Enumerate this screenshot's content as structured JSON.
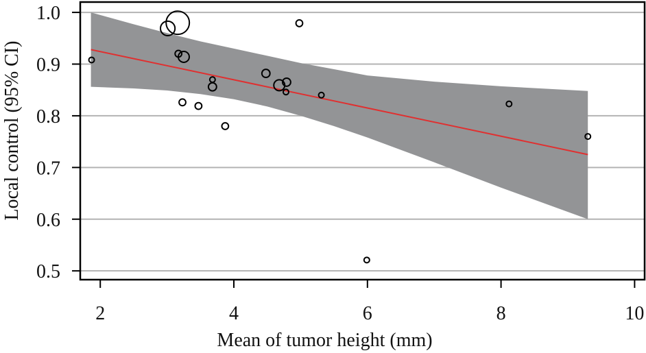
{
  "chart_data": {
    "type": "scatter",
    "title": "",
    "xlabel": "Mean of tumor height (mm)",
    "ylabel": "Local control (95% CI)",
    "xlim": [
      1.7,
      10.15
    ],
    "ylim": [
      0.483,
      1.02
    ],
    "xticks": [
      2,
      4,
      6,
      8,
      10
    ],
    "xtick_labels": [
      "2",
      "4",
      "6",
      "8",
      "10"
    ],
    "yticks": [
      0.5,
      0.6,
      0.7,
      0.8,
      0.9,
      1.0
    ],
    "ytick_labels": [
      "0.5",
      "0.6",
      "0.7",
      "0.8",
      "0.9",
      "1.0"
    ],
    "grid": "horizontal",
    "legend": "none",
    "points": [
      {
        "x": 1.87,
        "y": 0.908,
        "weight": 1
      },
      {
        "x": 3.01,
        "y": 0.969,
        "weight": 7
      },
      {
        "x": 3.16,
        "y": 0.98,
        "weight": 18
      },
      {
        "x": 3.17,
        "y": 0.92,
        "weight": 1.5
      },
      {
        "x": 3.25,
        "y": 0.914,
        "weight": 4
      },
      {
        "x": 3.23,
        "y": 0.826,
        "weight": 1.5
      },
      {
        "x": 3.47,
        "y": 0.819,
        "weight": 1.5
      },
      {
        "x": 3.68,
        "y": 0.87,
        "weight": 1
      },
      {
        "x": 3.68,
        "y": 0.856,
        "weight": 2.2
      },
      {
        "x": 3.87,
        "y": 0.78,
        "weight": 1.5
      },
      {
        "x": 4.48,
        "y": 0.882,
        "weight": 2.2
      },
      {
        "x": 4.68,
        "y": 0.859,
        "weight": 4
      },
      {
        "x": 4.79,
        "y": 0.865,
        "weight": 2.2
      },
      {
        "x": 4.78,
        "y": 0.846,
        "weight": 1
      },
      {
        "x": 4.98,
        "y": 0.979,
        "weight": 1.5
      },
      {
        "x": 5.31,
        "y": 0.84,
        "weight": 1
      },
      {
        "x": 5.99,
        "y": 0.521,
        "weight": 1
      },
      {
        "x": 8.12,
        "y": 0.823,
        "weight": 1
      },
      {
        "x": 9.3,
        "y": 0.76,
        "weight": 1
      }
    ],
    "regression": {
      "x": [
        1.86,
        9.3
      ],
      "y": [
        0.928,
        0.725
      ],
      "color": "#e03030"
    },
    "confidence_band": {
      "x": [
        1.86,
        2.5,
        3.0,
        3.5,
        4.0,
        4.5,
        5.0,
        5.5,
        6.0,
        7.0,
        8.0,
        9.3
      ],
      "upper": [
        1.0,
        0.977,
        0.96,
        0.944,
        0.93,
        0.916,
        0.902,
        0.89,
        0.878,
        0.866,
        0.857,
        0.848
      ],
      "lower": [
        0.856,
        0.853,
        0.849,
        0.842,
        0.832,
        0.818,
        0.8,
        0.78,
        0.758,
        0.71,
        0.661,
        0.6
      ],
      "color": "#939496"
    },
    "colors": {
      "grid": "#b3b3b3",
      "points": "#000000",
      "axis": "#000000"
    }
  }
}
